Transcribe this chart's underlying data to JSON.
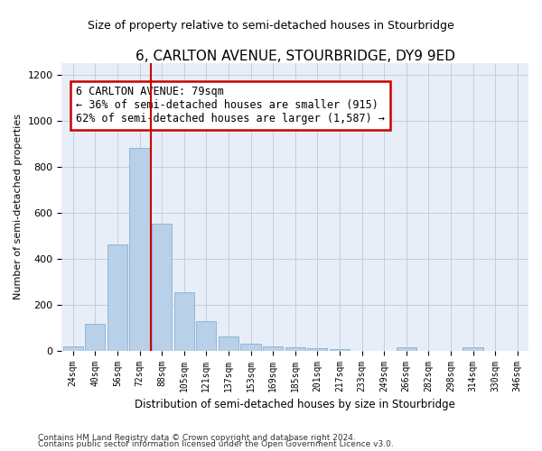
{
  "title": "6, CARLTON AVENUE, STOURBRIDGE, DY9 9ED",
  "subtitle": "Size of property relative to semi-detached houses in Stourbridge",
  "xlabel": "Distribution of semi-detached houses by size in Stourbridge",
  "ylabel": "Number of semi-detached properties",
  "categories": [
    "24sqm",
    "40sqm",
    "56sqm",
    "72sqm",
    "88sqm",
    "105sqm",
    "121sqm",
    "137sqm",
    "153sqm",
    "169sqm",
    "185sqm",
    "201sqm",
    "217sqm",
    "233sqm",
    "249sqm",
    "266sqm",
    "282sqm",
    "298sqm",
    "314sqm",
    "330sqm",
    "346sqm"
  ],
  "values": [
    20,
    115,
    460,
    880,
    550,
    255,
    130,
    60,
    30,
    20,
    15,
    10,
    5,
    0,
    0,
    15,
    0,
    0,
    15,
    0,
    0
  ],
  "bar_color": "#b8d0e8",
  "bar_edge_color": "#8ab0d0",
  "property_bin_index": 3,
  "annotation_text": "6 CARLTON AVENUE: 79sqm\n← 36% of semi-detached houses are smaller (915)\n62% of semi-detached houses are larger (1,587) →",
  "vline_color": "#cc0000",
  "annotation_box_edge": "#cc0000",
  "ylim": [
    0,
    1250
  ],
  "yticks": [
    0,
    200,
    400,
    600,
    800,
    1000,
    1200
  ],
  "footer_line1": "Contains HM Land Registry data © Crown copyright and database right 2024.",
  "footer_line2": "Contains public sector information licensed under the Open Government Licence v3.0.",
  "background_color": "#ffffff",
  "plot_bg_color": "#e8eef8",
  "grid_color": "#c0c8d8"
}
